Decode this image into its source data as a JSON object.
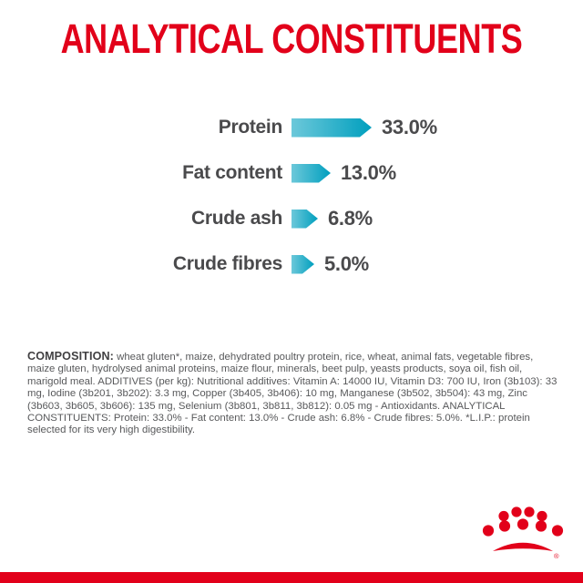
{
  "title": {
    "text": "ANALYTICAL CONSTITUENTS",
    "color": "#e2001a"
  },
  "chart_data": {
    "type": "bar",
    "orientation": "horizontal",
    "title": "ANALYTICAL CONSTITUENTS",
    "categories": [
      "Protein",
      "Fat content",
      "Crude ash",
      "Crude fibres"
    ],
    "values": [
      33.0,
      13.0,
      6.8,
      5.0
    ],
    "value_labels": [
      "33.0%",
      "13.0%",
      "6.8%",
      "5.0%"
    ],
    "unit": "%",
    "grid": false,
    "legend": false,
    "bar_gradient_start": "#6cc8da",
    "bar_gradient_end": "#009fbe",
    "text_color": "#4a4a4c"
  },
  "composition": {
    "label": "COMPOSITION:",
    "text": " wheat gluten*, maize, dehydrated poultry protein, rice, wheat, animal fats, vegetable fibres, maize gluten, hydrolysed animal proteins, maize flour, minerals, beet pulp, yeasts products, soya oil, fish oil, marigold meal. ADDITIVES (per kg): Nutritional additives: Vitamin A: 14000 IU, Vitamin D3: 700 IU, Iron (3b103): 33 mg, Iodine (3b201, 3b202): 3.3 mg, Copper (3b405, 3b406): 10 mg, Manganese (3b502, 3b504): 43 mg, Zinc (3b603, 3b605, 3b606): 135 mg, Selenium (3b801, 3b811, 3b812): 0.05 mg - Antioxidants. ANALYTICAL CONSTITUENTS: Protein: 33.0% - Fat content: 13.0% - Crude ash: 6.8% - Crude fibres: 5.0%. *L.I.P.: protein selected for its very high digestibility."
  },
  "logo": {
    "name": "royal-canin-crown",
    "color": "#e2001a",
    "registered_mark": "®"
  },
  "footer": {
    "bar_color": "#e2001a"
  }
}
